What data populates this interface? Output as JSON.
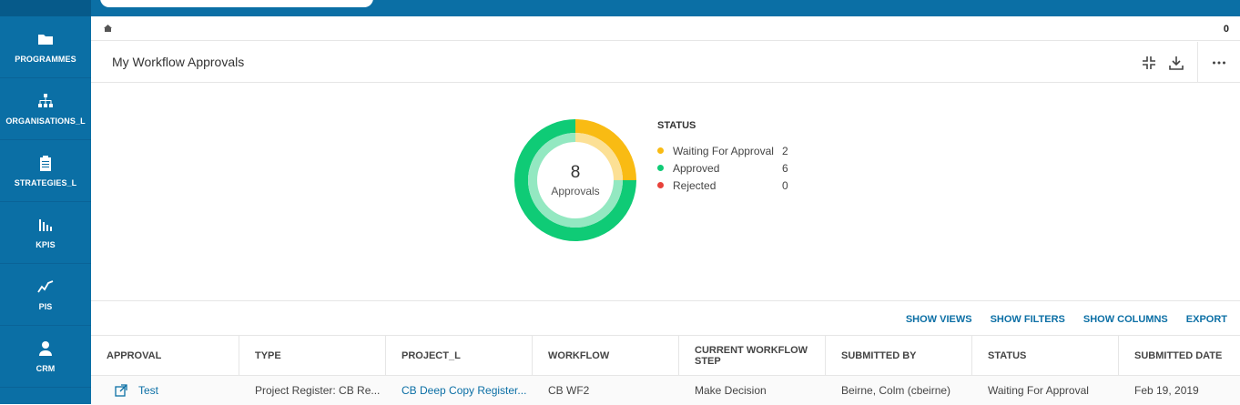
{
  "sidebar": {
    "items": [
      {
        "label": "PROGRAMMES",
        "icon": "folder-icon"
      },
      {
        "label": "ORGANISATIONS_L",
        "icon": "org-chart-icon"
      },
      {
        "label": "STRATEGIES_L",
        "icon": "clipboard-icon"
      },
      {
        "label": "KPIS",
        "icon": "bar-chart-icon"
      },
      {
        "label": "PIS",
        "icon": "line-chart-icon"
      },
      {
        "label": "CRM",
        "icon": "person-icon"
      }
    ]
  },
  "crumbbar": {
    "home_icon": "home-icon",
    "count": "0"
  },
  "panel": {
    "title": "My Workflow Approvals",
    "icons": [
      "collapse-icon",
      "download-icon",
      "more-icon"
    ]
  },
  "donut": {
    "total": "8",
    "total_label": "Approvals"
  },
  "legend": {
    "title": "STATUS",
    "items": [
      {
        "name": "Waiting For Approval",
        "value": "2",
        "color": "#f9bb13"
      },
      {
        "name": "Approved",
        "value": "6",
        "color": "#0fcb76"
      },
      {
        "name": "Rejected",
        "value": "0",
        "color": "#e8423a"
      }
    ]
  },
  "chart_data": {
    "type": "pie",
    "categories": [
      "Waiting For Approval",
      "Approved",
      "Rejected"
    ],
    "values": [
      2,
      6,
      0
    ],
    "colors": [
      "#f9bb13",
      "#0fcb76",
      "#e8423a"
    ]
  },
  "toolbar": {
    "show_views": "SHOW VIEWS",
    "show_filters": "SHOW FILTERS",
    "show_columns": "SHOW COLUMNS",
    "export": "EXPORT"
  },
  "grid": {
    "columns": [
      "APPROVAL",
      "TYPE",
      "PROJECT_L",
      "WORKFLOW",
      "CURRENT WORKFLOW STEP",
      "SUBMITTED BY",
      "STATUS",
      "SUBMITTED DATE"
    ],
    "rows": [
      {
        "approval": "Test",
        "type": "Project Register: CB Re...",
        "project": "CB Deep Copy Register...",
        "workflow": "CB WF2",
        "step": "Make Decision",
        "submitted_by": "Beirne, Colm (cbeirne)",
        "status": "Waiting For Approval",
        "date": "Feb 19, 2019"
      }
    ]
  },
  "colors": {
    "brand": "#0b6fa5",
    "link": "#0b6fa5"
  }
}
